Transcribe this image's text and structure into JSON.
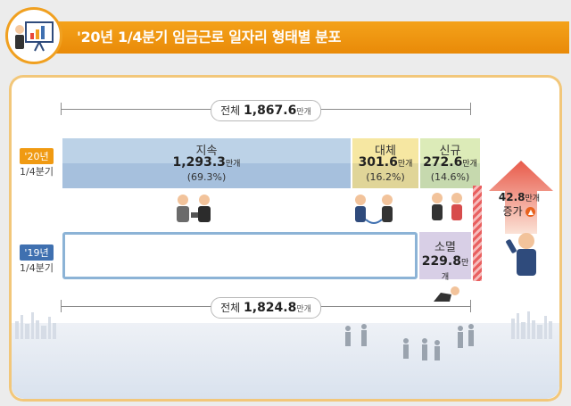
{
  "header": {
    "title": "'20년 1/4분기 임금근로 일자리 형태별 분포",
    "accent_color": "#f09a12",
    "logo_icon": "presentation-board-icon"
  },
  "totals": {
    "q20": {
      "label": "전체",
      "value": "1,867.6",
      "unit": "만개"
    },
    "q19": {
      "label": "전체",
      "value": "1,824.8",
      "unit": "만개"
    }
  },
  "rows": {
    "q20": {
      "year": "'20년",
      "quarter": "1/4분기",
      "year_color": "#f09a12"
    },
    "q19": {
      "year": "'19년",
      "quarter": "1/4분기",
      "year_color": "#3f70b0"
    }
  },
  "increase": {
    "value": "42.8",
    "unit": "만개",
    "label": "증가",
    "icon": "arrow-up-circle-icon"
  },
  "chart_data": {
    "type": "bar",
    "unit": "만개",
    "series": [
      {
        "name": "'20년 1/4분기",
        "segments": [
          {
            "name": "지속",
            "value": 1293.3,
            "value_text": "1,293.3",
            "share_text": "(69.3%)",
            "color": "#bcd2e7"
          },
          {
            "name": "대체",
            "value": 301.6,
            "value_text": "301.6",
            "share_text": "(16.2%)",
            "color": "#f6e7a2"
          },
          {
            "name": "신규",
            "value": 272.6,
            "value_text": "272.6",
            "share_text": "(14.6%)",
            "color": "#dcebb8"
          }
        ],
        "total": 1867.6
      },
      {
        "name": "'19년 1/4분기",
        "segments": [
          {
            "name": "지속",
            "value": 1293.3,
            "value_text": "",
            "share_text": "",
            "color": "#ffffff"
          },
          {
            "name": "대체",
            "value": 301.6,
            "value_text": "",
            "share_text": "",
            "color": "#ffffff"
          },
          {
            "name": "소멸",
            "value": 229.8,
            "value_text": "229.8",
            "share_text": "",
            "color": "#d8cfe6"
          }
        ],
        "total": 1824.8
      }
    ]
  }
}
